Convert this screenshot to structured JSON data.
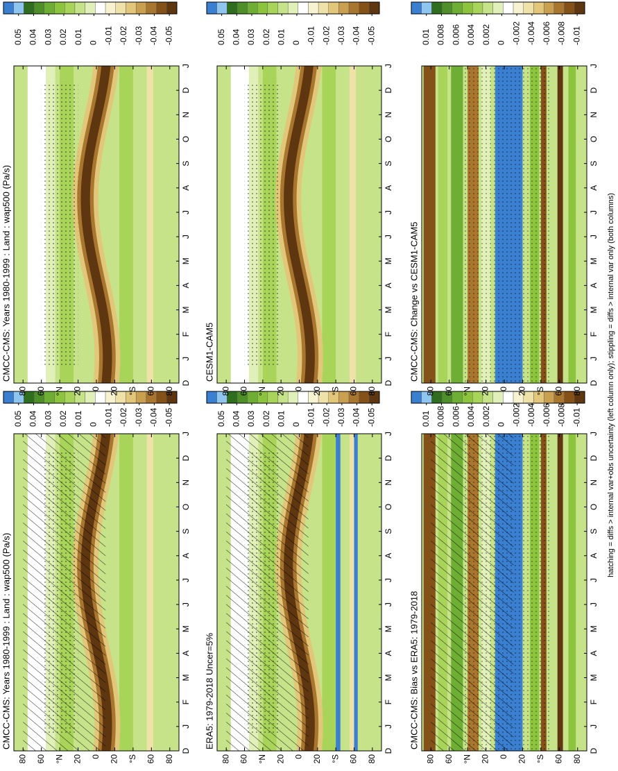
{
  "chart_data": [
    {
      "type": "contour",
      "title": "CMCC-CMS: Years 1980-1999 : Land : wap500 (Pa/s)",
      "categories": [
        "D",
        "J",
        "F",
        "M",
        "A",
        "M",
        "J",
        "J",
        "A",
        "S",
        "O",
        "N",
        "D",
        "J"
      ],
      "ylim": [
        90,
        -90
      ],
      "yticks": [
        80,
        60,
        {
          "value": 40,
          "label": "°N"
        },
        20,
        0,
        {
          "value": -20,
          "label": "20"
        },
        {
          "value": -40,
          "label": "°S"
        },
        {
          "value": -60,
          "label": "60"
        },
        {
          "value": -80,
          "label": "80"
        }
      ],
      "clim": [
        0.06,
        -0.055
      ],
      "cticks": [
        0.05,
        0.04,
        0.03,
        0.02,
        0.01,
        0,
        -0.01,
        -0.02,
        -0.03,
        -0.04,
        -0.05
      ],
      "colors": [
        "#3a7fd0",
        "#8ec6f0",
        "#2e6e1e",
        "#4e8f2a",
        "#6fae35",
        "#8cc43e",
        "#a9d45a",
        "#c6e38a",
        "#e0f0b8",
        "#ffffff",
        "#f7f2d0",
        "#efe2a8",
        "#e2c77a",
        "#c9a050",
        "#a8762e",
        "#845218",
        "#5e3610"
      ],
      "hatching": true
    },
    {
      "type": "contour",
      "title": "CMCC-CMS: Years 1980-1999 : Land : wap500 (Pa/s)",
      "categories": [
        "D",
        "J",
        "F",
        "M",
        "A",
        "M",
        "J",
        "J",
        "A",
        "S",
        "O",
        "N",
        "D",
        "J"
      ],
      "ylim": [
        90,
        -90
      ],
      "yticks": [
        80,
        60,
        {
          "value": 40,
          "label": "°N"
        },
        20,
        0,
        {
          "value": -20,
          "label": "20"
        },
        {
          "value": -40,
          "label": "°S"
        },
        {
          "value": -60,
          "label": "60"
        },
        {
          "value": -80,
          "label": "80"
        }
      ],
      "clim": [
        0.06,
        -0.055
      ],
      "cticks": [
        0.05,
        0.04,
        0.03,
        0.02,
        0.01,
        0,
        -0.01,
        -0.02,
        -0.03,
        -0.04,
        -0.05
      ],
      "colors": [
        "#3a7fd0",
        "#8ec6f0",
        "#2e6e1e",
        "#4e8f2a",
        "#6fae35",
        "#8cc43e",
        "#a9d45a",
        "#c6e38a",
        "#e0f0b8",
        "#ffffff",
        "#f7f2d0",
        "#efe2a8",
        "#e2c77a",
        "#c9a050",
        "#a8762e",
        "#845218",
        "#5e3610"
      ],
      "hatching": false
    },
    {
      "type": "contour",
      "title": "ERA5: 1979-2018 Uncer=5%",
      "categories": [
        "D",
        "J",
        "F",
        "M",
        "A",
        "M",
        "J",
        "J",
        "A",
        "S",
        "O",
        "N",
        "D",
        "J"
      ],
      "ylim": [
        90,
        -90
      ],
      "yticks": [
        80,
        60,
        {
          "value": 40,
          "label": "°N"
        },
        20,
        0,
        {
          "value": -20,
          "label": "20"
        },
        {
          "value": -40,
          "label": "°S"
        },
        {
          "value": -60,
          "label": "60"
        },
        {
          "value": -80,
          "label": "80"
        }
      ],
      "clim": [
        0.06,
        -0.055
      ],
      "cticks": [
        0.05,
        0.04,
        0.03,
        0.02,
        0.01,
        0,
        -0.01,
        -0.02,
        -0.03,
        -0.04,
        -0.05
      ],
      "colors": [
        "#3a7fd0",
        "#8ec6f0",
        "#2e6e1e",
        "#4e8f2a",
        "#6fae35",
        "#8cc43e",
        "#a9d45a",
        "#c6e38a",
        "#e0f0b8",
        "#ffffff",
        "#f7f2d0",
        "#efe2a8",
        "#e2c77a",
        "#c9a050",
        "#a8762e",
        "#845218",
        "#5e3610"
      ],
      "hatching": true
    },
    {
      "type": "contour",
      "title": "CESM1-CAM5",
      "categories": [
        "D",
        "J",
        "F",
        "M",
        "A",
        "M",
        "J",
        "J",
        "A",
        "S",
        "O",
        "N",
        "D",
        "J"
      ],
      "ylim": [
        90,
        -90
      ],
      "yticks": [
        80,
        60,
        {
          "value": 40,
          "label": "°N"
        },
        20,
        0,
        {
          "value": -20,
          "label": "20"
        },
        {
          "value": -40,
          "label": "°S"
        },
        {
          "value": -60,
          "label": "60"
        },
        {
          "value": -80,
          "label": "80"
        }
      ],
      "clim": [
        0.06,
        -0.055
      ],
      "cticks": [
        0.05,
        0.04,
        0.03,
        0.02,
        0.01,
        0,
        -0.01,
        -0.02,
        -0.03,
        -0.04,
        -0.05
      ],
      "colors": [
        "#3a7fd0",
        "#8ec6f0",
        "#2e6e1e",
        "#4e8f2a",
        "#6fae35",
        "#8cc43e",
        "#a9d45a",
        "#c6e38a",
        "#e0f0b8",
        "#ffffff",
        "#f7f2d0",
        "#efe2a8",
        "#e2c77a",
        "#c9a050",
        "#a8762e",
        "#845218",
        "#5e3610"
      ],
      "hatching": false
    },
    {
      "type": "contour-diff",
      "title": "CMCC-CMS: Bias vs ERA5: 1979-2018",
      "categories": [
        "D",
        "J",
        "F",
        "M",
        "A",
        "M",
        "J",
        "J",
        "A",
        "S",
        "O",
        "N",
        "D",
        "J"
      ],
      "ylim": [
        90,
        -90
      ],
      "yticks": [
        80,
        60,
        {
          "value": 40,
          "label": "°N"
        },
        20,
        0,
        {
          "value": -20,
          "label": "20"
        },
        {
          "value": -40,
          "label": "°S"
        },
        {
          "value": -60,
          "label": "60"
        },
        {
          "value": -80,
          "label": "80"
        }
      ],
      "clim": [
        0.012,
        -0.011
      ],
      "cticks": [
        0.01,
        0.008,
        0.006,
        0.004,
        0.002,
        0,
        -0.002,
        -0.004,
        -0.006,
        -0.008,
        -0.01
      ],
      "colors": [
        "#3a7fd0",
        "#8ec6f0",
        "#2e6e1e",
        "#4e8f2a",
        "#6fae35",
        "#8cc43e",
        "#a9d45a",
        "#c6e38a",
        "#e0f0b8",
        "#ffffff",
        "#f7f2d0",
        "#efe2a8",
        "#e2c77a",
        "#c9a050",
        "#a8762e",
        "#845218",
        "#5e3610"
      ],
      "hatching": true
    },
    {
      "type": "contour-diff",
      "title": "CMCC-CMS: Change vs CESM1-CAM5",
      "categories": [
        "D",
        "J",
        "F",
        "M",
        "A",
        "M",
        "J",
        "J",
        "A",
        "S",
        "O",
        "N",
        "D",
        "J"
      ],
      "ylim": [
        90,
        -90
      ],
      "yticks": [
        80,
        60,
        {
          "value": 40,
          "label": "°N"
        },
        20,
        0,
        {
          "value": -20,
          "label": "20"
        },
        {
          "value": -40,
          "label": "°S"
        },
        {
          "value": -60,
          "label": "60"
        },
        {
          "value": -80,
          "label": "80"
        }
      ],
      "clim": [
        0.012,
        -0.011
      ],
      "cticks": [
        0.01,
        0.008,
        0.006,
        0.004,
        0.002,
        0,
        -0.002,
        -0.004,
        -0.006,
        -0.008,
        -0.01
      ],
      "colors": [
        "#3a7fd0",
        "#8ec6f0",
        "#2e6e1e",
        "#4e8f2a",
        "#6fae35",
        "#8cc43e",
        "#a9d45a",
        "#c6e38a",
        "#e0f0b8",
        "#ffffff",
        "#f7f2d0",
        "#efe2a8",
        "#e2c77a",
        "#c9a050",
        "#a8762e",
        "#845218",
        "#5e3610"
      ],
      "hatching": false
    }
  ],
  "caption": "hatching = diffs > internal var+obs uncertainty (left column only); stippling = diffs > internal var only (both columns)"
}
